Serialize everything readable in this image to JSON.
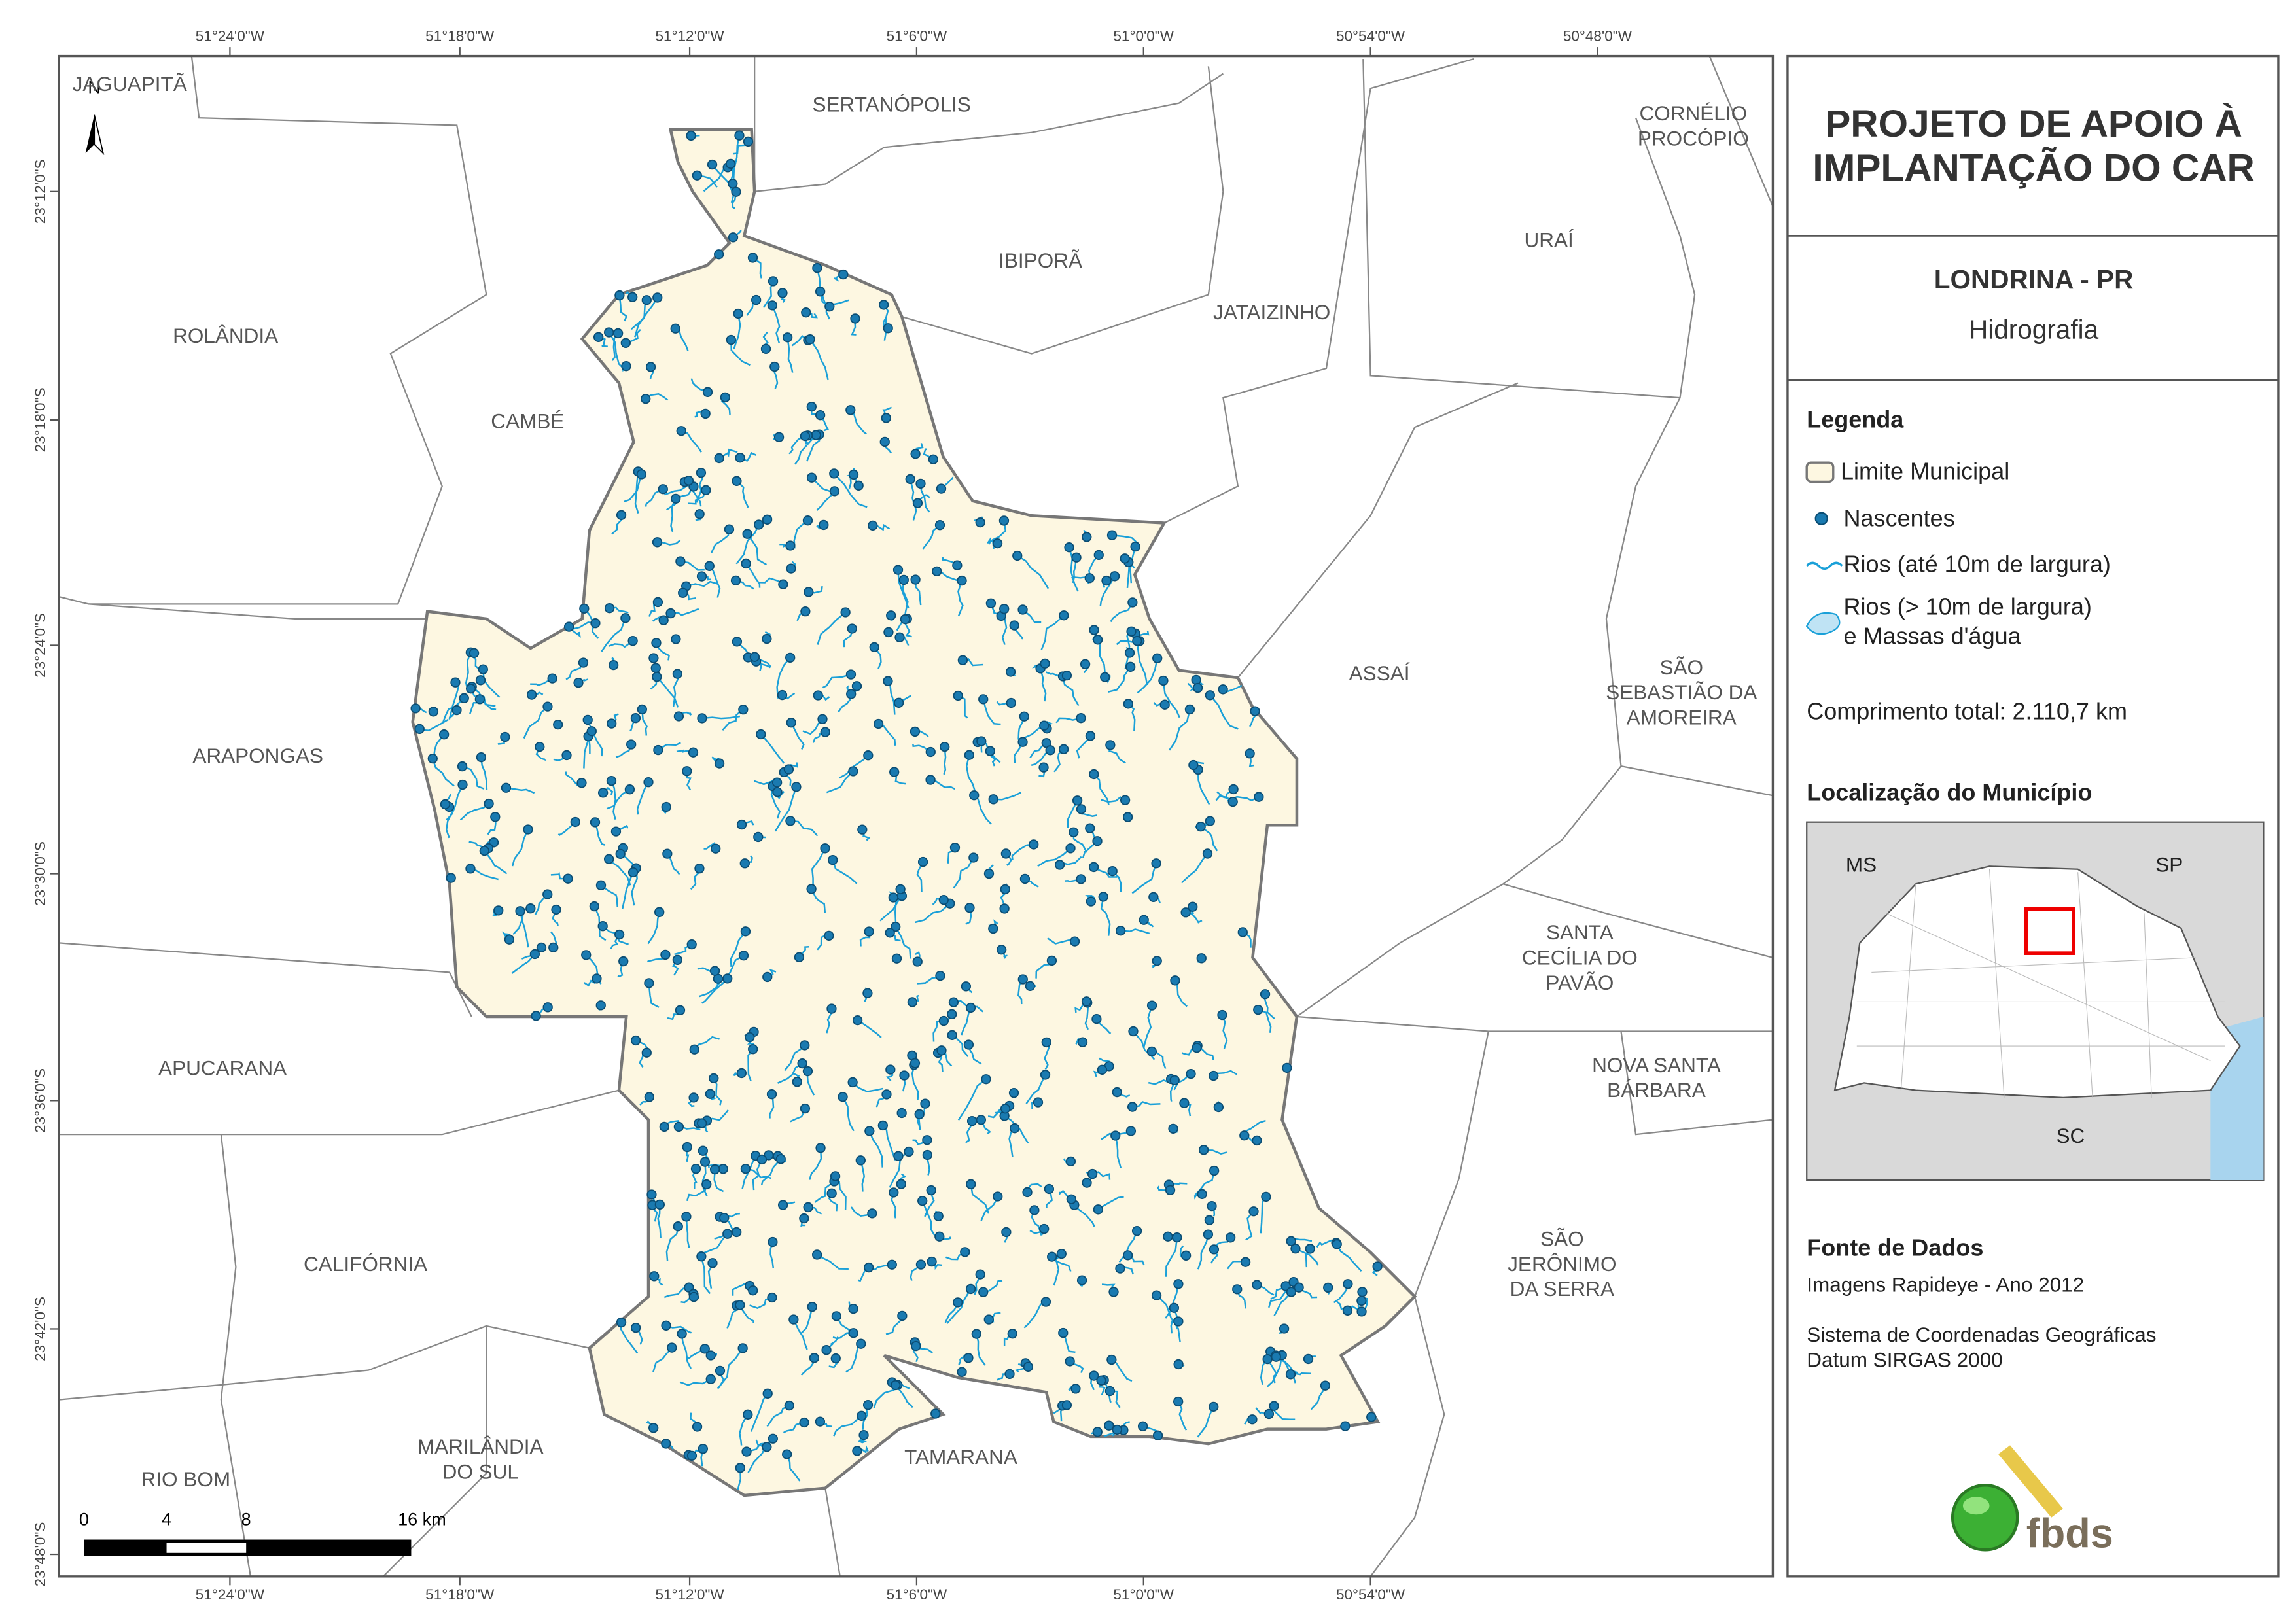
{
  "map": {
    "lon_ticks": [
      "51°24'0\"W",
      "51°18'0\"W",
      "51°12'0\"W",
      "51°6'0\"W",
      "51°0'0\"W",
      "50°54'0\"W",
      "50°48'0\"W"
    ],
    "lat_ticks": [
      "23°12'0\"S",
      "23°18'0\"S",
      "23°24'0\"S",
      "23°30'0\"S",
      "23°36'0\"S",
      "23°42'0\"S",
      "23°48'0\"S"
    ],
    "places": [
      [
        "JAGUAPITÃ"
      ],
      [
        "SERTANÓPOLIS"
      ],
      [
        "CORNÉLIO",
        "PROCÓPIO"
      ],
      [
        "IBIPORÃ"
      ],
      [
        "URAÍ"
      ],
      [
        "ROLÂNDIA"
      ],
      [
        "JATAIZINHO"
      ],
      [
        "CAMBÉ"
      ],
      [
        "ASSAÍ"
      ],
      [
        "SÃO",
        "SEBASTIÃO DA",
        "AMOREIRA"
      ],
      [
        "ARAPONGAS"
      ],
      [
        "SANTA",
        "CECÍLIA DO",
        "PAVÃO"
      ],
      [
        "APUCARANA"
      ],
      [
        "NOVA SANTA",
        "BÁRBARA"
      ],
      [
        "CALIFÓRNIA"
      ],
      [
        "SÃO",
        "JERÔNIMO",
        "DA SERRA"
      ],
      [
        "MARILÂNDIA",
        "DO SUL"
      ],
      [
        "RIO BOM"
      ],
      [
        "TAMARANA"
      ]
    ],
    "north": "N",
    "scale_labels": [
      "0",
      "4",
      "8",
      "16 km"
    ]
  },
  "panel": {
    "title": [
      "PROJETO DE APOIO À",
      "IMPLANTAÇÃO DO CAR"
    ],
    "municipality": "LONDRINA - PR",
    "theme": "Hidrografia",
    "legend": {
      "heading": "Legenda",
      "items": [
        "Limite Municipal",
        "Nascentes",
        "Rios (até 10m de largura)",
        [
          "Rios (> 10m de largura)",
          "e Massas d'água"
        ]
      ],
      "total": "Comprimento total:  2.110,7 km"
    },
    "location": {
      "heading": "Localização do Município",
      "labels": [
        "MS",
        "SP",
        "SC"
      ]
    },
    "sources": {
      "heading": "Fonte de Dados",
      "lines": [
        "Imagens Rapideye - Ano 2012",
        "Sistema de Coordenadas Geográficas",
        "Datum SIRGAS 2000"
      ]
    },
    "logo": "fbds"
  }
}
